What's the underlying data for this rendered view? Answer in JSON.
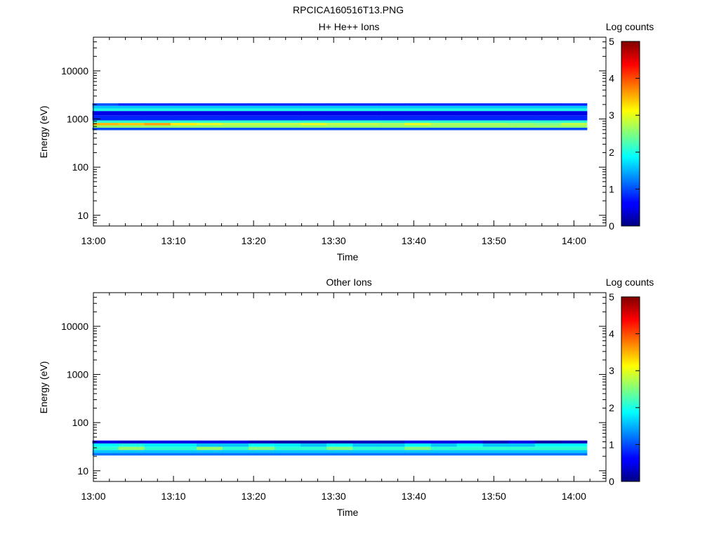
{
  "figure": {
    "title": "RPCICA160516T13.PNG"
  },
  "colorbar": {
    "label": "Log counts",
    "range": [
      0,
      5
    ],
    "ticks": [
      "0",
      "1",
      "2",
      "3",
      "4",
      "5"
    ],
    "colormap": "jet"
  },
  "chart_data": [
    {
      "type": "heatmap",
      "title": "H+ He++ Ions",
      "xlabel": "Time",
      "ylabel": "Energy (eV)",
      "x_ticks": [
        "13:00",
        "13:10",
        "13:20",
        "13:30",
        "13:40",
        "13:50",
        "14:00"
      ],
      "y_ticks": [
        "10",
        "100",
        "1000",
        "10000"
      ],
      "xlim": [
        "13:00",
        "14:04"
      ],
      "ylim": [
        6,
        50000
      ],
      "y_scale": "log",
      "time_bins": [
        "13:01:30",
        "13:04:45",
        "13:08:00",
        "13:11:15",
        "13:14:30",
        "13:17:45",
        "13:21:00",
        "13:24:15",
        "13:27:30",
        "13:30:45",
        "13:34:00",
        "13:37:15",
        "13:40:30",
        "13:43:45",
        "13:47:00",
        "13:50:15",
        "13:53:30",
        "13:56:45",
        "14:00:00"
      ],
      "band_log_counts": [
        {
          "energy_eV": 2000,
          "values": [
            1.0,
            0.8,
            0.8,
            0.8,
            0.8,
            0.8,
            0.8,
            0.8,
            0.8,
            0.8,
            0.8,
            0.8,
            0.8,
            0.8,
            0.8,
            0.8,
            0.8,
            0.8,
            0.8
          ]
        },
        {
          "energy_eV": 1760,
          "values": [
            1.6,
            1.6,
            1.6,
            1.6,
            1.6,
            1.6,
            1.6,
            1.6,
            1.6,
            1.6,
            1.6,
            1.6,
            1.6,
            1.6,
            1.6,
            1.6,
            1.6,
            1.6,
            1.6
          ]
        },
        {
          "energy_eV": 1550,
          "values": [
            2.0,
            2.0,
            2.0,
            2.0,
            2.0,
            2.0,
            2.0,
            2.0,
            2.0,
            2.0,
            2.0,
            2.0,
            2.0,
            2.0,
            2.0,
            2.0,
            2.0,
            2.0,
            2.0
          ]
        },
        {
          "energy_eV": 1370,
          "values": [
            0.5,
            0.5,
            0.5,
            0.5,
            0.5,
            0.5,
            0.5,
            0.5,
            0.5,
            0.5,
            0.5,
            0.5,
            0.5,
            0.5,
            0.5,
            0.5,
            0.5,
            0.5,
            0.5
          ]
        },
        {
          "energy_eV": 1000,
          "values": [
            0.8,
            0.8,
            0.8,
            0.8,
            0.8,
            0.8,
            0.8,
            0.8,
            0.8,
            0.8,
            0.8,
            0.8,
            0.8,
            0.8,
            0.8,
            0.8,
            0.8,
            0.8,
            0.8
          ]
        },
        {
          "energy_eV": 880,
          "values": [
            2.1,
            2.1,
            2.1,
            2.1,
            2.1,
            2.1,
            2.1,
            2.1,
            2.1,
            2.1,
            2.1,
            2.1,
            2.1,
            2.1,
            2.1,
            2.1,
            2.1,
            2.1,
            2.1
          ]
        },
        {
          "energy_eV": 780,
          "values": [
            3.5,
            3.4,
            3.6,
            3.2,
            3.0,
            2.8,
            2.8,
            2.8,
            3.0,
            2.8,
            2.8,
            2.7,
            3.0,
            2.7,
            2.7,
            2.7,
            2.6,
            2.5,
            2.8
          ]
        },
        {
          "energy_eV": 700,
          "values": [
            2.6,
            2.6,
            2.6,
            2.6,
            2.6,
            2.6,
            2.6,
            2.6,
            2.6,
            2.6,
            2.6,
            2.6,
            2.6,
            2.6,
            2.6,
            2.6,
            2.6,
            2.6,
            2.6
          ]
        },
        {
          "energy_eV": 620,
          "values": [
            1.0,
            1.0,
            1.0,
            1.0,
            1.0,
            1.0,
            1.0,
            1.0,
            1.0,
            1.0,
            1.0,
            1.0,
            1.0,
            1.0,
            1.0,
            1.0,
            1.0,
            1.0,
            1.0
          ]
        }
      ]
    },
    {
      "type": "heatmap",
      "title": "Other Ions",
      "xlabel": "Time",
      "ylabel": "Energy (eV)",
      "x_ticks": [
        "13:00",
        "13:10",
        "13:20",
        "13:30",
        "13:40",
        "13:50",
        "14:00"
      ],
      "y_ticks": [
        "10",
        "100",
        "1000",
        "10000"
      ],
      "xlim": [
        "13:00",
        "14:04"
      ],
      "ylim": [
        6,
        50000
      ],
      "y_scale": "log",
      "time_bins": [
        "13:01:30",
        "13:04:45",
        "13:08:00",
        "13:11:15",
        "13:14:30",
        "13:17:45",
        "13:21:00",
        "13:24:15",
        "13:27:30",
        "13:30:45",
        "13:34:00",
        "13:37:15",
        "13:40:30",
        "13:43:45",
        "13:47:00",
        "13:50:15",
        "13:53:30",
        "13:56:45",
        "14:00:00"
      ],
      "band_log_counts": [
        {
          "energy_eV": 40,
          "values": [
            0.5,
            0.4,
            0.5,
            0.5,
            0.5,
            0.5,
            0.3,
            0.2,
            0.2,
            0.2,
            0.3,
            0.3,
            0.5,
            0.5,
            0.5,
            0.3,
            0.5,
            0.2,
            0.3
          ]
        },
        {
          "energy_eV": 34,
          "values": [
            1.9,
            2.0,
            1.8,
            1.8,
            1.6,
            1.6,
            1.9,
            1.8,
            1.6,
            1.9,
            1.6,
            1.6,
            1.9,
            1.6,
            1.9,
            1.6,
            1.6,
            1.9,
            1.9
          ]
        },
        {
          "energy_eV": 29,
          "values": [
            2.1,
            2.6,
            2.1,
            2.1,
            2.6,
            2.1,
            2.5,
            2.1,
            2.1,
            2.5,
            2.1,
            2.1,
            2.5,
            2.1,
            2.1,
            2.1,
            2.1,
            2.1,
            2.1
          ]
        },
        {
          "energy_eV": 25,
          "values": [
            1.6,
            1.6,
            1.6,
            1.6,
            1.6,
            1.6,
            1.6,
            1.6,
            1.6,
            1.6,
            1.6,
            1.6,
            1.6,
            1.6,
            1.6,
            1.6,
            1.6,
            1.6,
            1.6
          ]
        },
        {
          "energy_eV": 22,
          "values": [
            1.2,
            1.2,
            1.2,
            1.2,
            1.2,
            1.2,
            1.2,
            1.2,
            1.2,
            1.2,
            1.2,
            1.2,
            1.2,
            1.2,
            1.2,
            1.2,
            1.2,
            1.2,
            1.2
          ]
        }
      ]
    }
  ]
}
